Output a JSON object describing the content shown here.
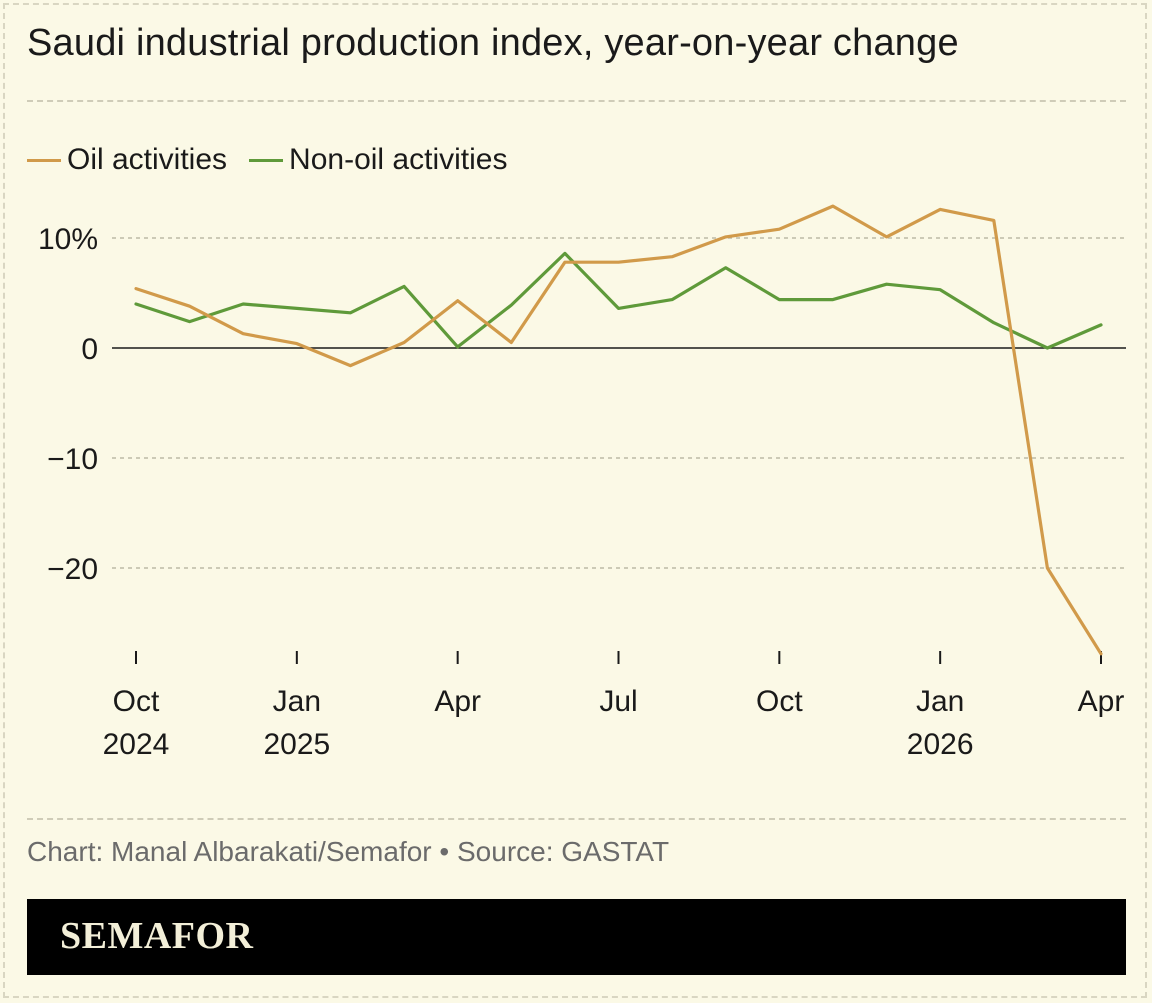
{
  "title": "Saudi industrial production index, year-on-year change",
  "legend": {
    "oil_label": "Oil activities",
    "nonoil_label": "Non-oil activities"
  },
  "source": "Chart: Manal Albarakati/Semafor • Source: GASTAT",
  "brand": "SEMAFOR",
  "colors": {
    "background": "#fbf9e6",
    "oil": "#d19a4a",
    "nonoil": "#5f9a3a",
    "brandbar": "#000000"
  },
  "chart_data": {
    "type": "line",
    "x": [
      "2024-10",
      "2024-11",
      "2024-12",
      "2025-01",
      "2025-02",
      "2025-03",
      "2025-04",
      "2025-05",
      "2025-06",
      "2025-07",
      "2025-08",
      "2025-09",
      "2025-10",
      "2025-11",
      "2025-12",
      "2026-01",
      "2026-02",
      "2026-03",
      "2026-04"
    ],
    "series": [
      {
        "name": "Oil activities",
        "color": "#d19a4a",
        "values": [
          5.4,
          3.8,
          1.3,
          0.4,
          -1.6,
          0.5,
          4.3,
          0.5,
          7.8,
          7.8,
          8.3,
          10.1,
          10.8,
          12.9,
          10.1,
          12.6,
          11.6,
          -20.0,
          -27.8
        ]
      },
      {
        "name": "Non-oil activities",
        "color": "#5f9a3a",
        "values": [
          4.0,
          2.4,
          4.0,
          3.6,
          3.2,
          5.6,
          0.1,
          3.9,
          8.6,
          3.6,
          4.4,
          7.3,
          4.4,
          4.4,
          5.8,
          5.3,
          2.3,
          0.0,
          2.1
        ]
      }
    ],
    "ylim": [
      -28,
      14
    ],
    "yticks": [
      {
        "value": 10,
        "label": "10%"
      },
      {
        "value": 0,
        "label": "0"
      },
      {
        "value": -10,
        "label": "−10"
      },
      {
        "value": -20,
        "label": "−20"
      }
    ],
    "xticks": [
      {
        "x": "2024-10",
        "label1": "Oct",
        "label2": "2024"
      },
      {
        "x": "2025-01",
        "label1": "Jan",
        "label2": "2025"
      },
      {
        "x": "2025-04",
        "label1": "Apr",
        "label2": ""
      },
      {
        "x": "2025-07",
        "label1": "Jul",
        "label2": ""
      },
      {
        "x": "2025-10",
        "label1": "Oct",
        "label2": ""
      },
      {
        "x": "2026-01",
        "label1": "Jan",
        "label2": "2026"
      },
      {
        "x": "2026-04",
        "label1": "Apr",
        "label2": ""
      }
    ],
    "grid": true,
    "legend_position": "top-left"
  }
}
